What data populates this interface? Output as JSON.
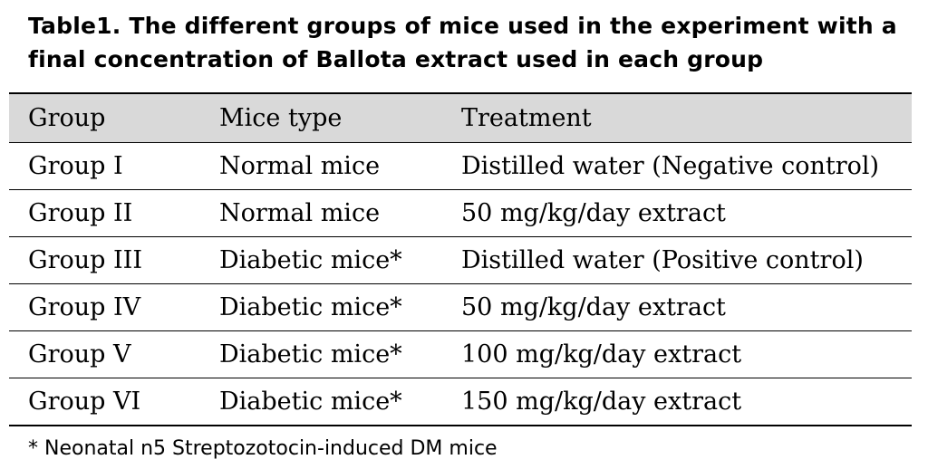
{
  "caption": {
    "line1": "Table1. The different groups of mice used in the experiment with a",
    "line2": "final concentration of Ballota extract used in each group"
  },
  "table": {
    "headers": [
      "Group",
      "Mice type",
      "Treatment"
    ],
    "rows": [
      [
        "Group I",
        "Normal mice",
        "Distilled water (Negative control)"
      ],
      [
        "Group II",
        "Normal mice",
        "50 mg/kg/day extract"
      ],
      [
        "Group III",
        "Diabetic mice*",
        "Distilled water (Positive control)"
      ],
      [
        "Group IV",
        "Diabetic mice*",
        "50 mg/kg/day extract"
      ],
      [
        "Group V",
        "Diabetic mice*",
        "100 mg/kg/day extract"
      ],
      [
        "Group VI",
        "Diabetic mice*",
        "150 mg/kg/day extract"
      ]
    ]
  },
  "footnote": "* Neonatal n5 Streptozotocin-induced DM mice"
}
